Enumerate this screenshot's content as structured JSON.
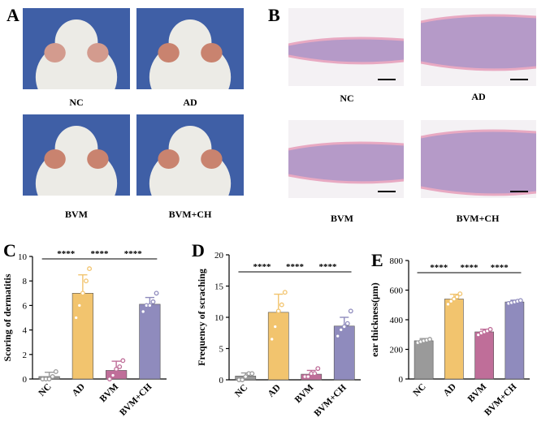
{
  "panels": {
    "A": "A",
    "B": "B",
    "C": "C",
    "D": "D",
    "E": "E"
  },
  "photos": {
    "labels": [
      "NC",
      "AD",
      "BVM",
      "BVM+CH"
    ],
    "background": "#3f5fa6",
    "fur": "#ecebe6",
    "ear": "#d39b8e"
  },
  "histology": {
    "labels": [
      "NC",
      "AD",
      "BVM",
      "BVM+CH"
    ],
    "tissue": "#a98bc0",
    "epidermis": "#e8a9c2"
  },
  "sig_label": "****",
  "chart_data": [
    {
      "type": "bar",
      "categories": [
        "NC",
        "AD",
        "BVM",
        "BVM+CH"
      ],
      "values": [
        0.2,
        7.0,
        0.7,
        6.1
      ],
      "errors": [
        0.35,
        1.5,
        0.75,
        0.55
      ],
      "points": [
        [
          0,
          0,
          0,
          0.2,
          0.6
        ],
        [
          5,
          6,
          7,
          8,
          9
        ],
        [
          0,
          0.3,
          0.8,
          1.0,
          1.5
        ],
        [
          5.5,
          6,
          6,
          6.3,
          7
        ]
      ],
      "colors": [
        "#9a9a9a",
        "#f2c46e",
        "#bf6e99",
        "#8f8bbd"
      ],
      "ylabel": "Scoring of dermatitis",
      "ylim": [
        0,
        10
      ],
      "yticks": [
        0,
        2,
        4,
        6,
        8,
        10
      ],
      "significance": [
        [
          0,
          1
        ],
        [
          1,
          2
        ],
        [
          2,
          3
        ]
      ]
    },
    {
      "type": "bar",
      "categories": [
        "NC",
        "AD",
        "BVM",
        "BVM+CH"
      ],
      "values": [
        0.6,
        10.8,
        0.9,
        8.6
      ],
      "errors": [
        0.5,
        2.9,
        0.6,
        1.4
      ],
      "points": [
        [
          0,
          0,
          0.5,
          1,
          1
        ],
        [
          6.5,
          8.5,
          11,
          12,
          14
        ],
        [
          0.5,
          0.5,
          1,
          1,
          1.8
        ],
        [
          7,
          8,
          8.5,
          9,
          11
        ]
      ],
      "colors": [
        "#9a9a9a",
        "#f2c46e",
        "#bf6e99",
        "#8f8bbd"
      ],
      "ylabel": "Frequency of scraching",
      "ylim": [
        0,
        20
      ],
      "yticks": [
        0,
        5,
        10,
        15,
        20
      ],
      "significance": [
        [
          0,
          1
        ],
        [
          1,
          2
        ],
        [
          2,
          3
        ]
      ]
    },
    {
      "type": "bar",
      "categories": [
        "NC",
        "AD",
        "BVM",
        "BVM+CH"
      ],
      "values": [
        258,
        540,
        318,
        520
      ],
      "errors": [
        15,
        32,
        18,
        12
      ],
      "points": [
        [
          245,
          252,
          258,
          262,
          268
        ],
        [
          505,
          525,
          540,
          555,
          575
        ],
        [
          298,
          310,
          318,
          325,
          335
        ],
        [
          510,
          515,
          520,
          525,
          530
        ]
      ],
      "colors": [
        "#9a9a9a",
        "#f2c46e",
        "#bf6e99",
        "#8f8bbd"
      ],
      "ylabel": "ear thickness(μm)",
      "ylim": [
        0,
        800
      ],
      "yticks": [
        0,
        200,
        400,
        600,
        800
      ],
      "significance": [
        [
          0,
          1
        ],
        [
          1,
          2
        ],
        [
          2,
          3
        ]
      ]
    }
  ]
}
